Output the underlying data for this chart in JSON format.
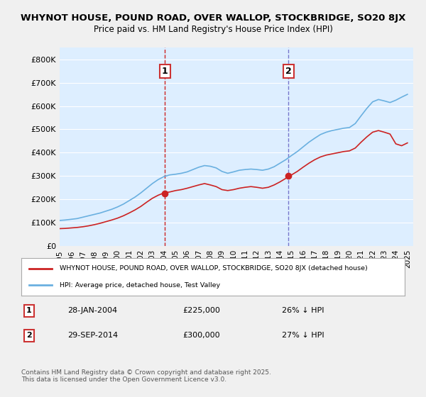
{
  "title1": "WHYNOT HOUSE, POUND ROAD, OVER WALLOP, STOCKBRIDGE, SO20 8JX",
  "title2": "Price paid vs. HM Land Registry's House Price Index (HPI)",
  "bg_color": "#d6e8f7",
  "plot_bg": "#ddeeff",
  "legend_line1": "WHYNOT HOUSE, POUND ROAD, OVER WALLOP, STOCKBRIDGE, SO20 8JX (detached house)",
  "legend_line2": "HPI: Average price, detached house, Test Valley",
  "marker1_date": "28-JAN-2004",
  "marker1_price": 225000,
  "marker1_pct": "26% ↓ HPI",
  "marker2_date": "29-SEP-2014",
  "marker2_price": 300000,
  "marker2_pct": "27% ↓ HPI",
  "footnote": "Contains HM Land Registry data © Crown copyright and database right 2025.\nThis data is licensed under the Open Government Licence v3.0.",
  "hpi_color": "#6ab0e0",
  "price_color": "#cc2222",
  "marker_vline_color": "#cc2222",
  "marker2_vline_color": "#7777cc",
  "ylim": [
    0,
    850000
  ],
  "yticks": [
    0,
    100000,
    200000,
    300000,
    400000,
    500000,
    600000,
    700000,
    800000
  ],
  "ytick_labels": [
    "£0",
    "£100K",
    "£200K",
    "£300K",
    "£400K",
    "£500K",
    "£600K",
    "£700K",
    "£800K"
  ],
  "marker1_x": 2004.08,
  "marker2_x": 2014.75,
  "hpi_x": [
    1995,
    1995.5,
    1996,
    1996.5,
    1997,
    1997.5,
    1998,
    1998.5,
    1999,
    1999.5,
    2000,
    2000.5,
    2001,
    2001.5,
    2002,
    2002.5,
    2003,
    2003.5,
    2004,
    2004.5,
    2005,
    2005.5,
    2006,
    2006.5,
    2007,
    2007.5,
    2008,
    2008.5,
    2009,
    2009.5,
    2010,
    2010.5,
    2011,
    2011.5,
    2012,
    2012.5,
    2013,
    2013.5,
    2014,
    2014.5,
    2015,
    2015.5,
    2016,
    2016.5,
    2017,
    2017.5,
    2018,
    2018.5,
    2019,
    2019.5,
    2020,
    2020.5,
    2021,
    2021.5,
    2022,
    2022.5,
    2023,
    2023.5,
    2024,
    2024.5,
    2025
  ],
  "hpi_y": [
    110000,
    112000,
    115000,
    118000,
    124000,
    130000,
    136000,
    142000,
    150000,
    158000,
    168000,
    180000,
    195000,
    210000,
    228000,
    248000,
    268000,
    285000,
    298000,
    305000,
    308000,
    312000,
    318000,
    328000,
    338000,
    345000,
    342000,
    335000,
    320000,
    312000,
    318000,
    325000,
    328000,
    330000,
    328000,
    325000,
    330000,
    340000,
    355000,
    370000,
    388000,
    405000,
    425000,
    445000,
    462000,
    478000,
    488000,
    495000,
    500000,
    505000,
    508000,
    525000,
    558000,
    590000,
    618000,
    628000,
    622000,
    615000,
    625000,
    638000,
    650000
  ],
  "price_x": [
    1995,
    1995.5,
    1996,
    1996.5,
    1997,
    1997.5,
    1998,
    1998.5,
    1999,
    1999.5,
    2000,
    2000.5,
    2001,
    2001.5,
    2002,
    2002.5,
    2003,
    2003.5,
    2004,
    2004.5,
    2005,
    2005.5,
    2006,
    2006.5,
    2007,
    2007.5,
    2008,
    2008.5,
    2009,
    2009.5,
    2010,
    2010.5,
    2011,
    2011.5,
    2012,
    2012.5,
    2013,
    2013.5,
    2014,
    2014.5,
    2015,
    2015.5,
    2016,
    2016.5,
    2017,
    2017.5,
    2018,
    2018.5,
    2019,
    2019.5,
    2020,
    2020.5,
    2021,
    2021.5,
    2022,
    2022.5,
    2023,
    2023.5,
    2024,
    2024.5,
    2025
  ],
  "price_y": [
    75000,
    76000,
    78000,
    80000,
    83000,
    87000,
    92000,
    98000,
    105000,
    112000,
    120000,
    130000,
    142000,
    155000,
    170000,
    188000,
    205000,
    218000,
    228000,
    232000,
    238000,
    242000,
    248000,
    255000,
    262000,
    268000,
    262000,
    255000,
    242000,
    238000,
    242000,
    248000,
    252000,
    255000,
    252000,
    248000,
    252000,
    262000,
    275000,
    290000,
    305000,
    320000,
    338000,
    355000,
    370000,
    382000,
    390000,
    395000,
    400000,
    405000,
    408000,
    420000,
    445000,
    468000,
    488000,
    495000,
    488000,
    480000,
    438000,
    430000,
    442000
  ],
  "xticks": [
    1995,
    1996,
    1997,
    1998,
    1999,
    2000,
    2001,
    2002,
    2003,
    2004,
    2005,
    2006,
    2007,
    2008,
    2009,
    2010,
    2011,
    2012,
    2013,
    2014,
    2015,
    2016,
    2017,
    2018,
    2019,
    2020,
    2021,
    2022,
    2023,
    2024,
    2025
  ]
}
